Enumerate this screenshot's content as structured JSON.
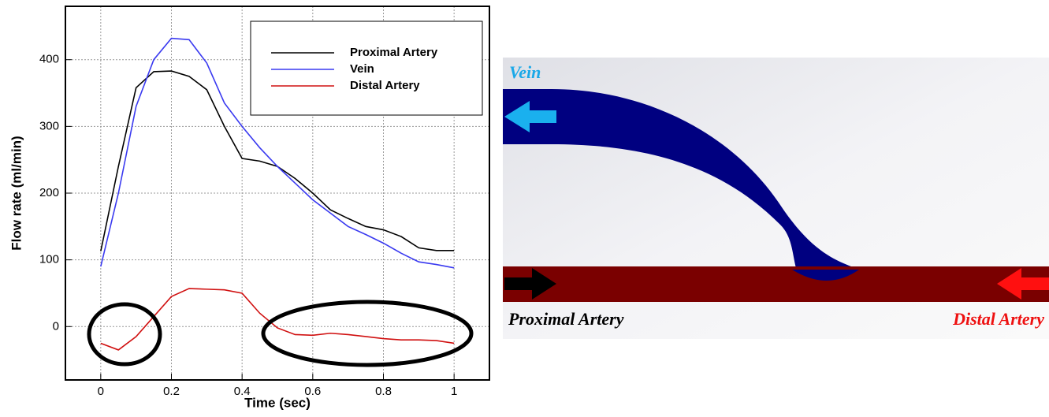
{
  "chart_data": {
    "type": "line",
    "x_label": "Time (sec)",
    "y_label": "Flow rate (ml/min)",
    "x": [
      0,
      0.05,
      0.1,
      0.15,
      0.2,
      0.25,
      0.3,
      0.35,
      0.4,
      0.45,
      0.5,
      0.55,
      0.6,
      0.65,
      0.7,
      0.75,
      0.8,
      0.85,
      0.9,
      0.95,
      1
    ],
    "series": [
      {
        "name": "Proximal Artery",
        "color": "#000000",
        "values": [
          113,
          240,
          358,
          382,
          383,
          375,
          355,
          300,
          252,
          248,
          240,
          222,
          200,
          175,
          162,
          150,
          145,
          135,
          118,
          114,
          114
        ]
      },
      {
        "name": "Vein",
        "color": "#3a3af0",
        "values": [
          90,
          200,
          330,
          400,
          432,
          430,
          395,
          335,
          300,
          268,
          240,
          215,
          190,
          170,
          150,
          138,
          125,
          110,
          97,
          93,
          88
        ]
      },
      {
        "name": "Distal Artery",
        "color": "#d01010",
        "values": [
          -25,
          -35,
          -15,
          15,
          45,
          57,
          56,
          55,
          50,
          20,
          -2,
          -12,
          -13,
          -10,
          -12,
          -15,
          -18,
          -20,
          -20,
          -21,
          -25
        ]
      }
    ],
    "xlim": [
      -0.1,
      1.1
    ],
    "ylim": [
      -80,
      480
    ],
    "xticks": [
      0,
      0.2,
      0.4,
      0.6,
      0.8,
      1
    ],
    "yticks": [
      0,
      100,
      200,
      300,
      400
    ],
    "grid": true,
    "legend": "upper right"
  },
  "diagram": {
    "vein_label": "Vein",
    "proximal_label": "Proximal Artery",
    "distal_label": "Distal Artery"
  }
}
